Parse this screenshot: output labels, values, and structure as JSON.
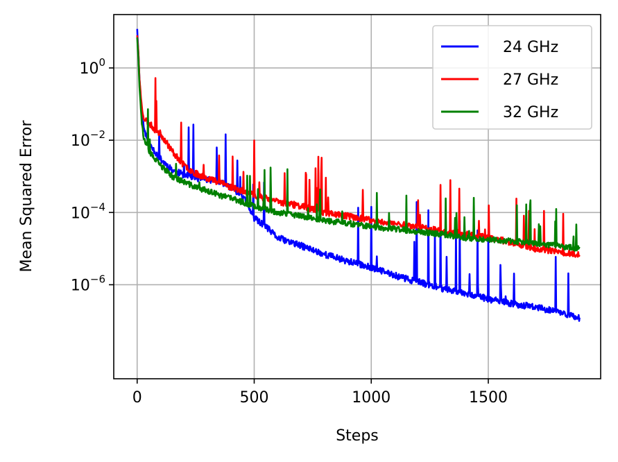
{
  "chart_data": {
    "type": "line",
    "title": "",
    "xlabel": "Steps",
    "ylabel": "Mean Squared Error",
    "yscale": "log",
    "xlim": [
      -100,
      1980
    ],
    "ylim": [
      2.5e-09,
      30
    ],
    "xticks": [
      0,
      500,
      1000,
      1500
    ],
    "xtick_labels": [
      "0",
      "500",
      "1000",
      "1500"
    ],
    "yticks": [
      1,
      0.01,
      0.0001,
      1e-06
    ],
    "ytick_labels": [
      {
        "base": "10",
        "exp": "0"
      },
      {
        "base": "10",
        "exp": "−2"
      },
      {
        "base": "10",
        "exp": "−4"
      },
      {
        "base": "10",
        "exp": "−6"
      }
    ],
    "grid": true,
    "legend_position": "top-right",
    "series": [
      {
        "name": "24 GHz",
        "color": "#0000ff",
        "x": [
          0,
          5,
          10,
          20,
          30,
          50,
          75,
          100,
          150,
          200,
          250,
          300,
          340,
          400,
          450,
          480,
          500,
          550,
          600,
          700,
          800,
          900,
          1000,
          1100,
          1200,
          1300,
          1400,
          1500,
          1600,
          1700,
          1800,
          1890
        ],
        "y": [
          12,
          3,
          0.5,
          0.05,
          0.02,
          0.008,
          0.005,
          0.003,
          0.0015,
          0.0011,
          0.0009,
          0.0008,
          0.0008,
          0.0005,
          0.0003,
          0.00012,
          7e-05,
          4e-05,
          2e-05,
          1.2e-05,
          7e-06,
          4.5e-06,
          3e-06,
          1.8e-06,
          1.2e-06,
          8e-07,
          6e-07,
          4e-07,
          3e-07,
          2.4e-07,
          1.8e-07,
          1.2e-07
        ]
      },
      {
        "name": "27 GHz",
        "color": "#ff0000",
        "x": [
          0,
          5,
          10,
          20,
          30,
          50,
          75,
          100,
          150,
          200,
          250,
          300,
          350,
          400,
          500,
          600,
          700,
          800,
          900,
          1000,
          1100,
          1200,
          1300,
          1400,
          1500,
          1600,
          1700,
          1800,
          1890
        ],
        "y": [
          8,
          3,
          0.5,
          0.08,
          0.04,
          0.03,
          0.02,
          0.015,
          0.005,
          0.002,
          0.0012,
          0.0009,
          0.0007,
          0.0005,
          0.0003,
          0.0002,
          0.00015,
          0.0001,
          8e-05,
          6e-05,
          5e-05,
          4e-05,
          3e-05,
          2.5e-05,
          2e-05,
          1.5e-05,
          1e-05,
          8e-06,
          7e-06
        ]
      },
      {
        "name": "32 GHz",
        "color": "#008000",
        "x": [
          0,
          5,
          10,
          20,
          30,
          50,
          75,
          100,
          150,
          200,
          250,
          300,
          350,
          400,
          500,
          600,
          700,
          800,
          900,
          1000,
          1100,
          1200,
          1300,
          1400,
          1500,
          1600,
          1700,
          1800,
          1890
        ],
        "y": [
          7,
          2,
          0.3,
          0.03,
          0.01,
          0.005,
          0.003,
          0.002,
          0.001,
          0.0007,
          0.0005,
          0.0004,
          0.0003,
          0.00025,
          0.00015,
          0.0001,
          8e-05,
          6e-05,
          5e-05,
          4e-05,
          3.5e-05,
          3e-05,
          2.5e-05,
          2e-05,
          1.8e-05,
          1.6e-05,
          1.4e-05,
          1.2e-05,
          1e-05
        ]
      }
    ]
  }
}
